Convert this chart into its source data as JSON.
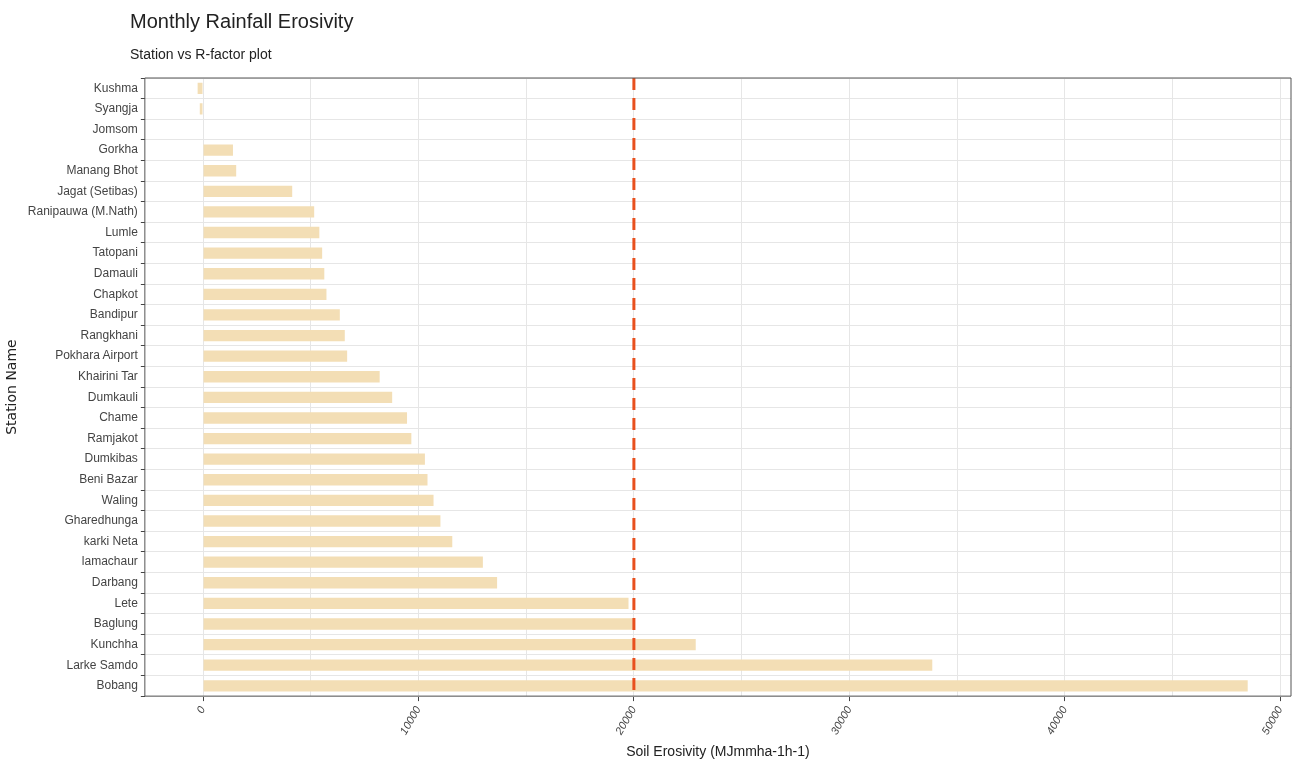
{
  "chart_data": {
    "type": "bar",
    "orientation": "horizontal",
    "title": "Monthly Rainfall Erosivity",
    "subtitle": "Station vs R-factor plot",
    "xlabel": "Soil Erosivity (MJmmha-1h-1)",
    "ylabel": "Station Name",
    "categories": [
      "Kushma",
      "Syangja",
      "Jomsom",
      "Gorkha",
      "Manang Bhot",
      "Jagat (Setibas)",
      "Ranipauwa (M.Nath)",
      "Lumle",
      "Tatopani",
      "Damauli",
      "Chapkot",
      "Bandipur",
      "Rangkhani",
      "Pokhara Airport",
      "Khairini Tar",
      "Dumkauli",
      "Chame",
      "Ramjakot",
      "Dumkibas",
      "Beni Bazar",
      "Waling",
      "Gharedhunga",
      "karki Neta",
      "lamachaur",
      "Darbang",
      "Lete",
      "Baglung",
      "Kunchha",
      "Larke Samdo",
      "Bobang"
    ],
    "values": [
      -250,
      -150,
      0,
      1390,
      1540,
      4140,
      5160,
      5400,
      5530,
      5630,
      5730,
      6350,
      6580,
      6690,
      8200,
      8780,
      9470,
      9670,
      10300,
      10420,
      10700,
      11020,
      11570,
      12990,
      13650,
      19750,
      19950,
      22870,
      33850,
      48490
    ],
    "color": "#f3deb5",
    "xlim": [
      -2700,
      50500
    ],
    "xticks": [
      0,
      {
        "value": 5000,
        "label": null
      },
      10000,
      {
        "value": 15000,
        "label": null
      },
      20000,
      {
        "value": 25000,
        "label": null
      },
      30000,
      {
        "value": 35000,
        "label": null
      },
      40000,
      {
        "value": 45000,
        "label": null
      },
      50000
    ],
    "grid": true,
    "legend": false,
    "ref_lines": [
      {
        "axis": "x",
        "value": 20000,
        "color": "#e8501e",
        "line_style": "dashed"
      }
    ]
  }
}
